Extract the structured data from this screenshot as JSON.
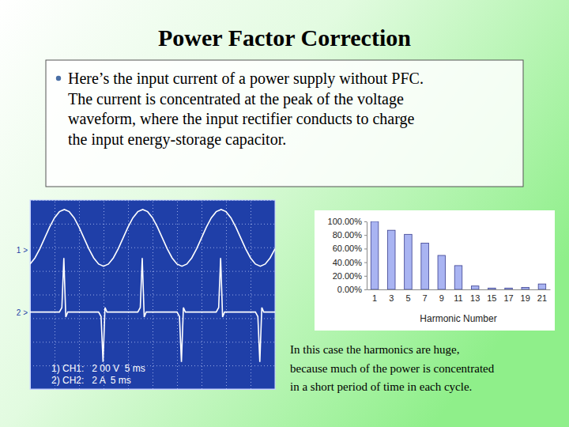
{
  "slide": {
    "title": "Power Factor Correction",
    "bullet": [
      "Here’s the input current of a power supply without PFC.",
      "The current is concentrated at the peak of the voltage",
      "waveform, where the input rectifier conducts to charge",
      "the input energy-storage capacitor."
    ],
    "caption": [
      "In this case the harmonics are huge,",
      "because much of the power is concentrated",
      "in a short period of time in each cycle."
    ]
  },
  "chart_data": [
    {
      "type": "line",
      "xlim": [
        0,
        50
      ],
      "xticks": [
        0,
        5,
        10,
        15,
        20,
        25,
        30,
        35,
        40,
        45,
        50
      ],
      "ylim": [
        -4,
        4
      ],
      "yticks": [
        -4,
        -3,
        -2,
        -1,
        0,
        1,
        2,
        3,
        4
      ],
      "grid": true,
      "tick_labels": false,
      "legend": "lower left",
      "annotations": [
        {
          "text": "1 >",
          "y": 1.9
        },
        {
          "text": "2 >",
          "y": -0.74
        }
      ],
      "series": [
        {
          "name": "1) CH1:   2 00 V  5 ms",
          "color": "#ffffff",
          "x": [
            0,
            1,
            2,
            3,
            4,
            5,
            6,
            7,
            8,
            9,
            10,
            11,
            12,
            13,
            14,
            15,
            16,
            17,
            18,
            19,
            20,
            21,
            22,
            23,
            24,
            25,
            26,
            27,
            28,
            29,
            30,
            31,
            32,
            33,
            34,
            35,
            36,
            37,
            38,
            39,
            40,
            41,
            42,
            43,
            44,
            45,
            46,
            47,
            48,
            49,
            50
          ],
          "values": [
            1.29,
            1.55,
            1.94,
            2.4,
            2.86,
            3.25,
            3.51,
            3.6,
            3.51,
            3.25,
            2.86,
            2.4,
            1.94,
            1.55,
            1.29,
            1.2,
            1.29,
            1.55,
            1.94,
            2.4,
            2.86,
            3.25,
            3.51,
            3.6,
            3.51,
            3.25,
            2.86,
            2.4,
            1.94,
            1.55,
            1.29,
            1.2,
            1.29,
            1.55,
            1.94,
            2.4,
            2.86,
            3.25,
            3.51,
            3.6,
            3.51,
            3.25,
            2.86,
            2.4,
            1.94,
            1.55,
            1.29,
            1.2,
            1.29,
            1.55,
            1.94
          ]
        },
        {
          "name": "2) CH2:   2 A  5 ms",
          "color": "#ffffff",
          "x": [
            0,
            6,
            6.5,
            6.9,
            7.3,
            7.7,
            14,
            14.5,
            14.9,
            15.3,
            15.7,
            22,
            22.5,
            22.9,
            23.3,
            23.7,
            30,
            30.5,
            30.9,
            31.3,
            31.7,
            38,
            38.5,
            38.9,
            39.3,
            39.7,
            46,
            46.5,
            46.9,
            47.3,
            47.7,
            50
          ],
          "values": [
            -0.74,
            -0.74,
            -0.55,
            1.55,
            -0.95,
            -0.74,
            -0.74,
            -0.93,
            -2.85,
            -0.55,
            -0.74,
            -0.74,
            -0.55,
            1.55,
            -0.95,
            -0.74,
            -0.74,
            -0.93,
            -2.85,
            -0.55,
            -0.74,
            -0.74,
            -0.55,
            1.55,
            -0.95,
            -0.74,
            -0.74,
            -0.93,
            -2.85,
            -0.55,
            -0.74,
            -0.74
          ]
        }
      ]
    },
    {
      "type": "bar",
      "categories": [
        1,
        3,
        5,
        7,
        9,
        11,
        13,
        15,
        17,
        19,
        21
      ],
      "values": [
        100,
        87,
        81,
        68,
        50,
        35,
        5,
        2,
        2,
        3,
        8
      ],
      "color": "#a9b4f2",
      "ylim": [
        0,
        100
      ],
      "yticks": [
        {
          "value": 0,
          "label": "0.00%"
        },
        {
          "value": 20,
          "label": "20.00%"
        },
        {
          "value": 40,
          "label": "40.00%"
        },
        {
          "value": 60,
          "label": "60.00%"
        },
        {
          "value": 80,
          "label": "80.00%"
        },
        {
          "value": 100,
          "label": "100.00%"
        }
      ],
      "x_label": "Harmonic Number"
    }
  ]
}
